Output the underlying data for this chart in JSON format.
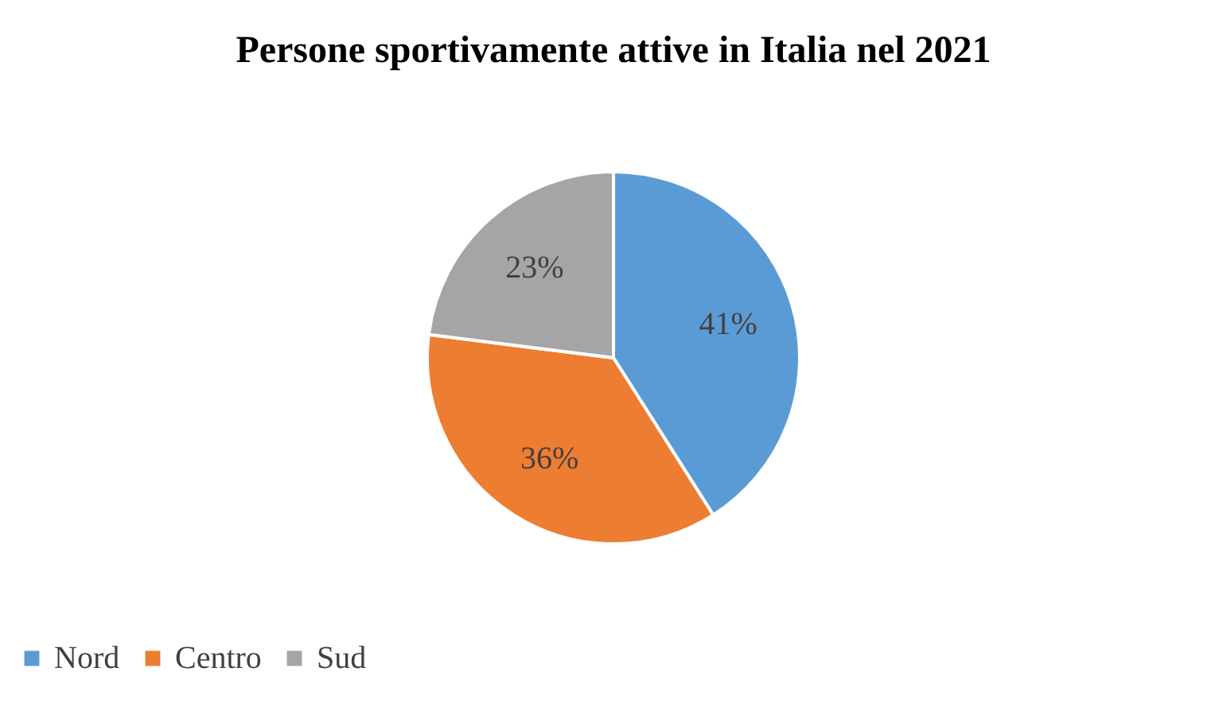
{
  "chart_data": {
    "type": "pie",
    "title": "Persone sportivamente attive in Italia nel 2021",
    "categories": [
      "Nord",
      "Centro",
      "Sud"
    ],
    "values": [
      41,
      36,
      23
    ],
    "colors": [
      "#5b9bd5",
      "#ed7d31",
      "#a5a5a5"
    ],
    "value_labels": [
      "41%",
      "36%",
      "23%"
    ],
    "legend": "bottom"
  }
}
